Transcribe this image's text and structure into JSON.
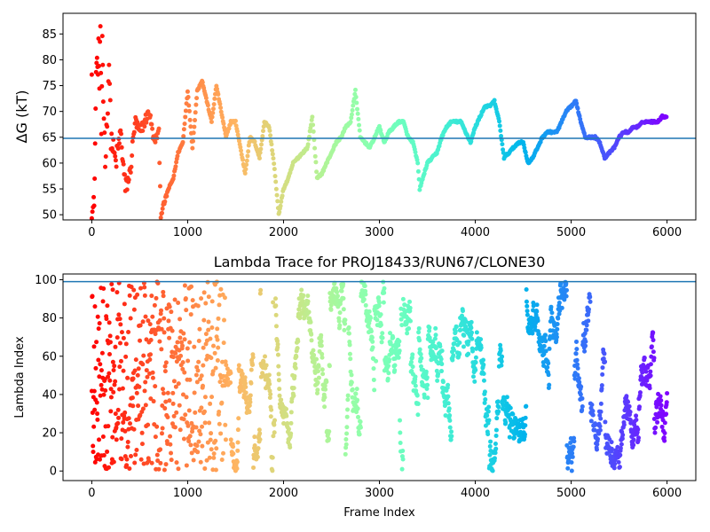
{
  "chart_data": [
    {
      "type": "scatter",
      "title": "",
      "xlabel": "",
      "ylabel": "ΔG (kT)",
      "xlim": [
        -300,
        6300
      ],
      "ylim": [
        49,
        89
      ],
      "xticks": [
        0,
        1000,
        2000,
        3000,
        4000,
        5000,
        6000
      ],
      "yticks": [
        50,
        55,
        60,
        65,
        70,
        75,
        80,
        85
      ],
      "hline": 64.8,
      "hline_color": "#1f77b4",
      "colormap": "rainbow (reversed by frame index: red at 0, violet at 6000)",
      "grid": false,
      "series": [
        {
          "values_approx": [
            [
              0,
              80
            ],
            [
              0,
              50
            ],
            [
              20,
              51
            ],
            [
              30,
              57
            ],
            [
              40,
              70
            ],
            [
              50,
              82
            ],
            [
              60,
              76
            ],
            [
              70,
              83
            ],
            [
              80,
              75
            ],
            [
              90,
              87
            ],
            [
              100,
              63
            ],
            [
              110,
              85
            ],
            [
              120,
              73
            ],
            [
              140,
              61
            ],
            [
              160,
              68
            ],
            [
              180,
              80
            ],
            [
              200,
              65
            ],
            [
              250,
              60
            ],
            [
              300,
              66
            ],
            [
              350,
              55
            ],
            [
              400,
              58
            ],
            [
              450,
              68
            ],
            [
              500,
              66
            ],
            [
              550,
              68
            ],
            [
              600,
              70
            ],
            [
              650,
              64
            ],
            [
              700,
              66
            ],
            [
              720,
              50
            ],
            [
              800,
              55
            ],
            [
              850,
              57
            ],
            [
              900,
              62
            ],
            [
              950,
              64
            ],
            [
              1000,
              74
            ],
            [
              1050,
              63
            ],
            [
              1100,
              74
            ],
            [
              1150,
              76
            ],
            [
              1200,
              72
            ],
            [
              1250,
              68
            ],
            [
              1300,
              75
            ],
            [
              1350,
              70
            ],
            [
              1400,
              65
            ],
            [
              1450,
              68
            ],
            [
              1500,
              68
            ],
            [
              1550,
              63
            ],
            [
              1600,
              58
            ],
            [
              1650,
              65
            ],
            [
              1700,
              64
            ],
            [
              1750,
              61
            ],
            [
              1800,
              68
            ],
            [
              1850,
              67
            ],
            [
              1900,
              60
            ],
            [
              1950,
              50
            ],
            [
              2000,
              55
            ],
            [
              2050,
              57
            ],
            [
              2100,
              60
            ],
            [
              2150,
              61
            ],
            [
              2200,
              62
            ],
            [
              2250,
              63
            ],
            [
              2300,
              69
            ],
            [
              2350,
              57
            ],
            [
              2400,
              58
            ],
            [
              2450,
              60
            ],
            [
              2500,
              62
            ],
            [
              2550,
              64
            ],
            [
              2600,
              65
            ],
            [
              2650,
              67
            ],
            [
              2700,
              68
            ],
            [
              2750,
              74
            ],
            [
              2800,
              65
            ],
            [
              2850,
              64
            ],
            [
              2900,
              63
            ],
            [
              2950,
              65
            ],
            [
              3000,
              67
            ],
            [
              3050,
              64
            ],
            [
              3100,
              66
            ],
            [
              3150,
              67
            ],
            [
              3200,
              68
            ],
            [
              3250,
              68
            ],
            [
              3300,
              65
            ],
            [
              3350,
              64
            ],
            [
              3400,
              60
            ],
            [
              3420,
              55
            ],
            [
              3500,
              60
            ],
            [
              3550,
              61
            ],
            [
              3600,
              62
            ],
            [
              3650,
              65
            ],
            [
              3700,
              67
            ],
            [
              3750,
              68
            ],
            [
              3800,
              68
            ],
            [
              3850,
              68
            ],
            [
              3900,
              66
            ],
            [
              3950,
              64
            ],
            [
              4000,
              67
            ],
            [
              4050,
              69
            ],
            [
              4100,
              71
            ],
            [
              4150,
              71
            ],
            [
              4200,
              72
            ],
            [
              4250,
              68
            ],
            [
              4300,
              61
            ],
            [
              4350,
              62
            ],
            [
              4400,
              63
            ],
            [
              4450,
              64
            ],
            [
              4500,
              64
            ],
            [
              4550,
              60
            ],
            [
              4600,
              61
            ],
            [
              4650,
              63
            ],
            [
              4700,
              65
            ],
            [
              4750,
              66
            ],
            [
              4800,
              66
            ],
            [
              4850,
              66
            ],
            [
              4900,
              68
            ],
            [
              4950,
              70
            ],
            [
              5000,
              71
            ],
            [
              5050,
              72
            ],
            [
              5100,
              68
            ],
            [
              5150,
              65
            ],
            [
              5200,
              65
            ],
            [
              5250,
              65
            ],
            [
              5300,
              64
            ],
            [
              5350,
              61
            ],
            [
              5400,
              62
            ],
            [
              5450,
              63
            ],
            [
              5500,
              65
            ],
            [
              5550,
              66
            ],
            [
              5600,
              66
            ],
            [
              5650,
              67
            ],
            [
              5700,
              67
            ],
            [
              5750,
              68
            ],
            [
              5800,
              68
            ],
            [
              5850,
              68
            ],
            [
              5900,
              68
            ],
            [
              5950,
              69
            ],
            [
              6000,
              69
            ]
          ]
        }
      ]
    },
    {
      "type": "scatter",
      "title": "Lambda Trace for PROJ18433/RUN67/CLONE30",
      "xlabel": "Frame Index",
      "ylabel": "Lambda Index",
      "xlim": [
        -300,
        6300
      ],
      "ylim": [
        -5,
        103
      ],
      "xticks": [
        0,
        1000,
        2000,
        3000,
        4000,
        5000,
        6000
      ],
      "yticks": [
        0,
        20,
        40,
        60,
        80,
        100
      ],
      "hline": 99,
      "hline_color": "#1f77b4",
      "colormap": "rainbow (reversed by frame index: red at 0, violet at 6000)",
      "grid": false,
      "series": [
        {
          "description_values": "lambda index values between 0 and 99 for frames 0 to 6000, oscillating in vertical bands"
        }
      ]
    }
  ]
}
